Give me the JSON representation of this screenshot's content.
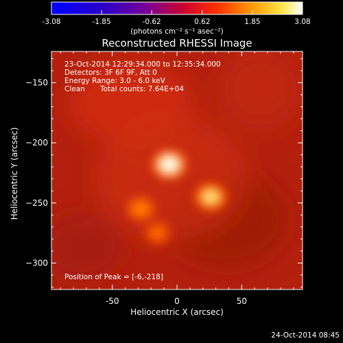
{
  "chart_data": {
    "type": "heatmap",
    "title": "Reconstructed RHESSI Image",
    "xlabel": "Heliocentric X (arcsec)",
    "ylabel": "Heliocentric Y (arcsec)",
    "xlim": [
      -97,
      97
    ],
    "ylim": [
      -322,
      -124
    ],
    "x_ticks": [
      -50,
      0,
      50
    ],
    "y_ticks": [
      -150,
      -200,
      -250,
      -300
    ],
    "colorbar": {
      "label": "(photons cm⁻² s⁻¹ asec⁻²)",
      "range": [
        -3.08,
        3.08
      ],
      "ticks": [
        "-3.08",
        "-1.85",
        "-0.62",
        "0.62",
        "1.85",
        "3.08"
      ],
      "colormap": "rainbow-3-blue-purple-red-yellow-white"
    },
    "annotations": {
      "time_range": "23-Oct-2014 12:29:34.000 to 12:35:34.000",
      "detectors": "Detectors: 3F 6F 9F, Att 0",
      "energy": "Energy Range: 3.0 - 6.0 keV",
      "clean": "Clean",
      "total_counts": "Total counts: 7.64E+04",
      "peak": "Position of Peak = [-6,-218]"
    },
    "sources": [
      {
        "x": -6,
        "y": -218,
        "peak": 3.08
      },
      {
        "x": 26,
        "y": -245,
        "peak": 2.6
      },
      {
        "x": -28,
        "y": -255,
        "peak": 1.7
      },
      {
        "x": -15,
        "y": -275,
        "peak": 1.4
      }
    ],
    "background_level": 0.6,
    "footer_timestamp": "24-Oct-2014 08:45"
  }
}
